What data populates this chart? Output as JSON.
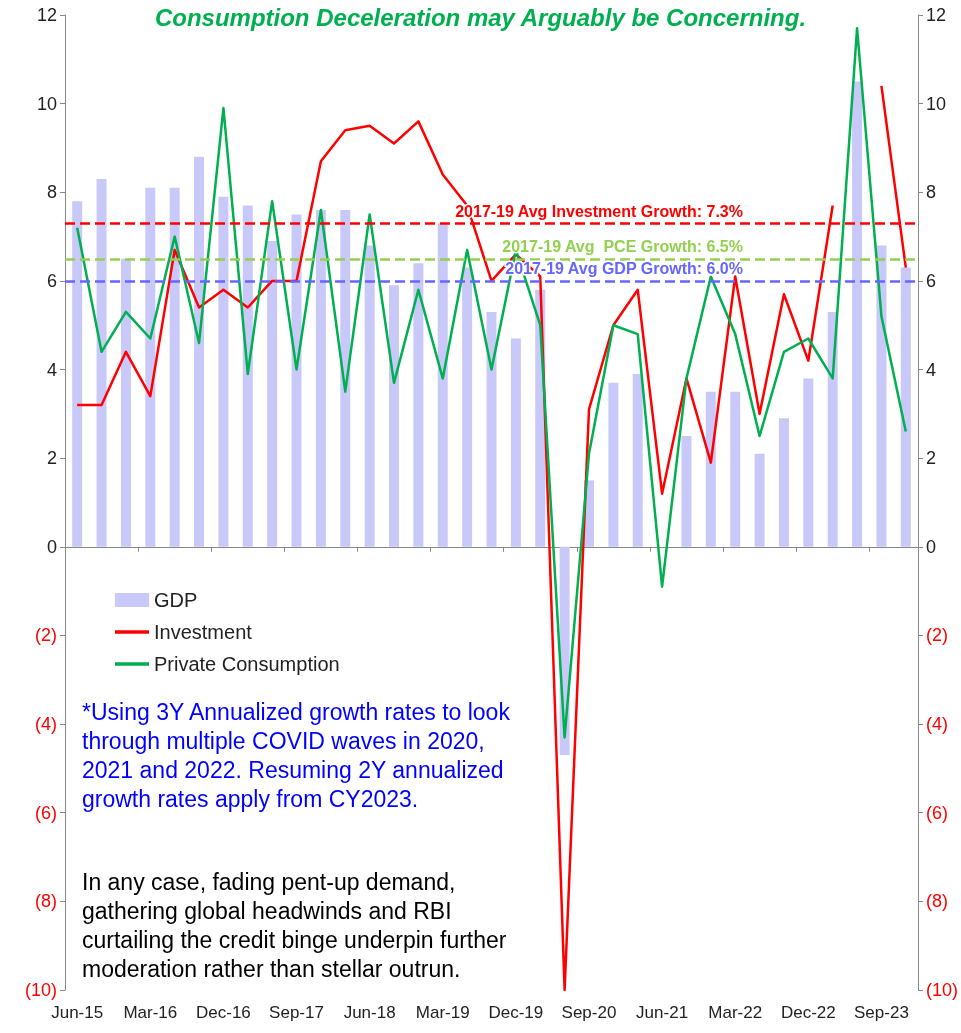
{
  "chart_data": {
    "type": "bar",
    "title": "Consumption Deceleration may Arguably  be Concerning.",
    "categories": [
      "Jun-15",
      null,
      null,
      "Mar-16",
      null,
      null,
      "Dec-16",
      null,
      null,
      "Sep-17",
      null,
      null,
      "Jun-18",
      null,
      null,
      "Mar-19",
      null,
      null,
      "Dec-19",
      null,
      null,
      "Sep-20",
      null,
      null,
      "Jun-21",
      null,
      null,
      "Mar-22",
      null,
      null,
      "Dec-22",
      null,
      null,
      "Sep-23",
      null
    ],
    "series": [
      {
        "name": "GDP",
        "color": "#c9c9f9",
        "values": [
          7.8,
          8.3,
          6.5,
          8.1,
          8.1,
          8.8,
          7.9,
          7.7,
          6.9,
          7.5,
          7.6,
          7.6,
          6.8,
          5.9,
          6.4,
          7.3,
          6.3,
          5.3,
          4.7,
          5.8,
          -4.7,
          1.5,
          3.7,
          3.9,
          null,
          2.5,
          3.5,
          3.5,
          2.1,
          2.9,
          3.8,
          5.3,
          10.5,
          6.8,
          6.3
        ]
      },
      {
        "name": "Investment",
        "type": "line",
        "color": "#ff0000",
        "values": [
          3.2,
          3.2,
          4.4,
          3.4,
          6.7,
          5.4,
          5.8,
          5.4,
          6.0,
          6.0,
          8.7,
          9.4,
          9.5,
          9.1,
          9.6,
          8.4,
          7.7,
          6.0,
          6.6,
          6.1,
          -10,
          3.1,
          5.0,
          5.8,
          1.2,
          3.8,
          1.9,
          6.1,
          3.0,
          5.7,
          4.2,
          7.7,
          null,
          10.4,
          6.3
        ]
      },
      {
        "name": "Private Consumption",
        "type": "line",
        "color": "#00b050",
        "values": [
          7.2,
          4.4,
          5.3,
          4.7,
          7.0,
          4.6,
          9.9,
          3.9,
          7.8,
          4.0,
          7.6,
          3.5,
          7.5,
          3.7,
          5.8,
          3.8,
          6.7,
          4.0,
          6.7,
          5.0,
          -4.3,
          2.1,
          5.0,
          4.8,
          -0.9,
          3.8,
          6.1,
          4.8,
          2.5,
          4.4,
          4.7,
          3.8,
          11.7,
          5.2,
          2.6
        ]
      }
    ],
    "ylim": [
      -10,
      12
    ],
    "yticks": [
      {
        "value": -10,
        "label": "(10)"
      },
      {
        "value": -8,
        "label": "(8)"
      },
      {
        "value": -6,
        "label": "(6)"
      },
      {
        "value": -4,
        "label": "(4)"
      },
      {
        "value": -2,
        "label": "(2)"
      },
      0,
      2,
      4,
      6,
      8,
      10,
      12
    ],
    "y2lim": [
      -10,
      12
    ],
    "y2ticks": [
      {
        "value": -10,
        "label": "(10)"
      },
      {
        "value": -8,
        "label": "(8)"
      },
      {
        "value": -6,
        "label": "(6)"
      },
      {
        "value": -4,
        "label": "(4)"
      },
      {
        "value": -2,
        "label": "(2)"
      },
      0,
      2,
      4,
      6,
      8,
      10,
      12
    ],
    "ref_lines": [
      {
        "axis": "y",
        "value": 7.3,
        "label": "2017-19 Avg Investment Growth: 7.3%",
        "color": "#ff0000",
        "line_style": "dashed"
      },
      {
        "axis": "y",
        "value": 6.5,
        "label": "2017-19 Avg  PCE Growth: 6.5%",
        "color": "#92d050",
        "line_style": "dashed"
      },
      {
        "axis": "y",
        "value": 6.0,
        "label": "2017-19 Avg GDP Growth: 6.0%",
        "color": "#6666ff",
        "line_style": "dashed"
      }
    ],
    "annotations": [
      "*Using 3Y Annualized growth rates to look through multiple COVID waves in 2020, 2021 and 2022. Resuming 2Y annualized growth rates apply from CY2023.",
      "In any case, fading pent-up demand, gathering global headwinds and RBI curtailing the credit binge underpin further moderation rather than stellar outrun."
    ],
    "legend": "left",
    "grid": false,
    "marker": "none",
    "line_style": "solid"
  }
}
